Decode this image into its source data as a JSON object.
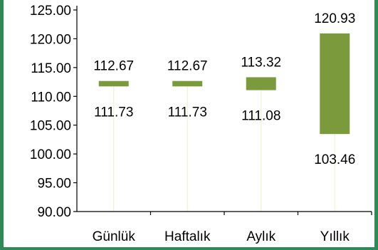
{
  "colors": {
    "bar": "#7a9a3c",
    "axis": "#000000",
    "frame": "#2e8b57",
    "connector": "#f1f4d8"
  },
  "chart_data": {
    "type": "bar",
    "subtype": "floating-range",
    "categories": [
      "Günlük",
      "Haftalık",
      "Aylık",
      "Yıllık"
    ],
    "series": [
      {
        "low": [
          111.73,
          111.73,
          111.08,
          103.46
        ],
        "high": [
          112.67,
          112.67,
          113.32,
          120.93
        ]
      }
    ],
    "low_labels": [
      "111.73",
      "111.73",
      "111.08",
      "103.46"
    ],
    "high_labels": [
      "112.67",
      "112.67",
      "113.32",
      "120.93"
    ],
    "yticks": [
      90,
      95,
      100,
      105,
      110,
      115,
      120,
      125
    ],
    "ytick_labels": [
      "90.00",
      "95.00",
      "100.00",
      "105.00",
      "110.00",
      "115.00",
      "120.00",
      "125.00"
    ],
    "ylim": [
      90,
      125
    ],
    "title": "",
    "xlabel": "",
    "ylabel": "",
    "grid": false,
    "legend": "none"
  }
}
